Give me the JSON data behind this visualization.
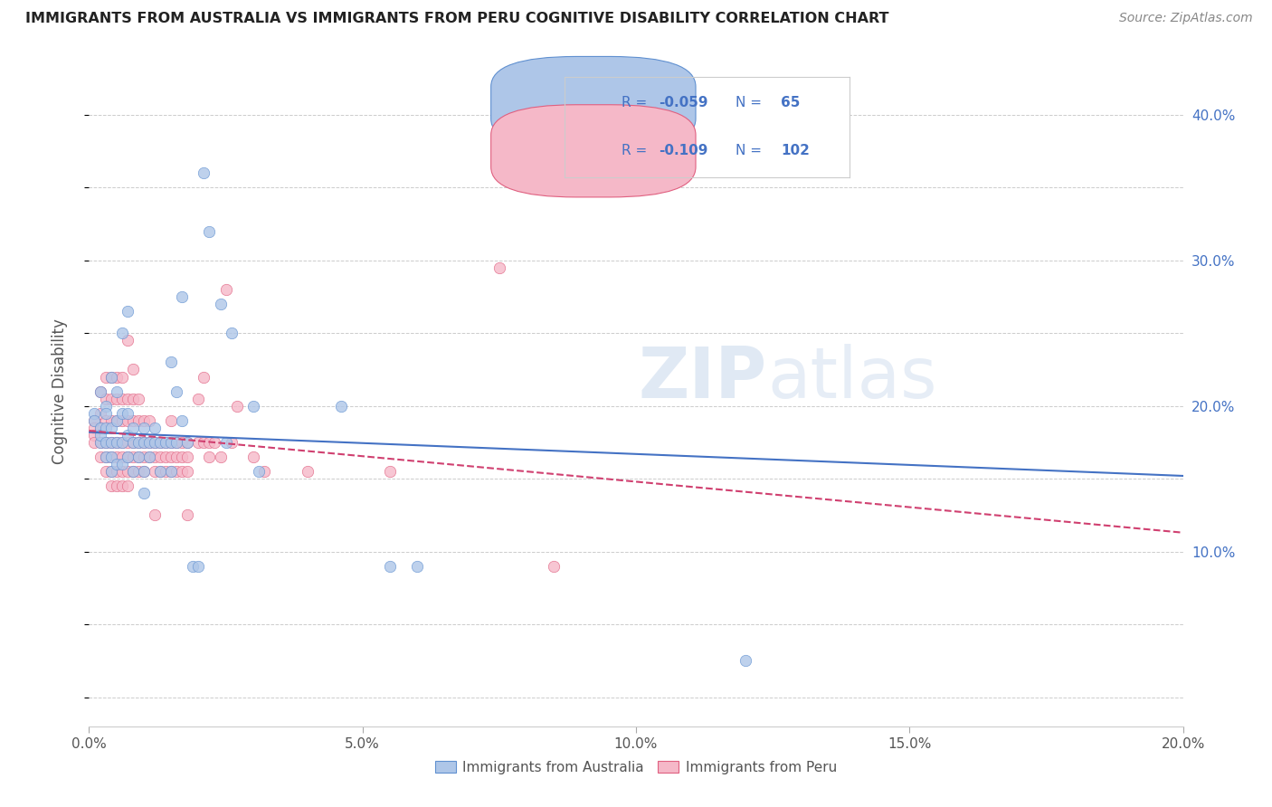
{
  "title": "IMMIGRANTS FROM AUSTRALIA VS IMMIGRANTS FROM PERU COGNITIVE DISABILITY CORRELATION CHART",
  "source": "Source: ZipAtlas.com",
  "xlabel_ticks": [
    "0.0%",
    "5.0%",
    "10.0%",
    "15.0%",
    "20.0%"
  ],
  "xlabel_vals": [
    0.0,
    0.05,
    0.1,
    0.15,
    0.2
  ],
  "xlim": [
    0.0,
    0.2
  ],
  "ylim": [
    -0.02,
    0.44
  ],
  "australia_R": -0.059,
  "australia_N": 65,
  "peru_R": -0.109,
  "peru_N": 102,
  "australia_color": "#aec6e8",
  "peru_color": "#f5b8c8",
  "australia_edge_color": "#6090d0",
  "peru_edge_color": "#e06080",
  "australia_line_color": "#4472c4",
  "peru_line_color": "#d04070",
  "legend_text_color": "#4472c4",
  "watermark": "ZIPatlas",
  "legend_australia_label": "Immigrants from Australia",
  "legend_peru_label": "Immigrants from Peru",
  "aus_line_intercept": 0.182,
  "aus_line_slope": -0.15,
  "peru_line_intercept": 0.183,
  "peru_line_slope": -0.35,
  "australia_scatter": [
    [
      0.001,
      0.195
    ],
    [
      0.001,
      0.19
    ],
    [
      0.002,
      0.21
    ],
    [
      0.002,
      0.185
    ],
    [
      0.002,
      0.175
    ],
    [
      0.002,
      0.18
    ],
    [
      0.003,
      0.2
    ],
    [
      0.003,
      0.185
    ],
    [
      0.003,
      0.175
    ],
    [
      0.003,
      0.165
    ],
    [
      0.003,
      0.195
    ],
    [
      0.004,
      0.22
    ],
    [
      0.004,
      0.185
    ],
    [
      0.004,
      0.175
    ],
    [
      0.004,
      0.165
    ],
    [
      0.004,
      0.155
    ],
    [
      0.005,
      0.21
    ],
    [
      0.005,
      0.19
    ],
    [
      0.005,
      0.175
    ],
    [
      0.005,
      0.16
    ],
    [
      0.006,
      0.25
    ],
    [
      0.006,
      0.195
    ],
    [
      0.006,
      0.175
    ],
    [
      0.006,
      0.16
    ],
    [
      0.007,
      0.265
    ],
    [
      0.007,
      0.195
    ],
    [
      0.007,
      0.18
    ],
    [
      0.007,
      0.165
    ],
    [
      0.008,
      0.185
    ],
    [
      0.008,
      0.175
    ],
    [
      0.008,
      0.155
    ],
    [
      0.009,
      0.175
    ],
    [
      0.009,
      0.165
    ],
    [
      0.01,
      0.185
    ],
    [
      0.01,
      0.175
    ],
    [
      0.01,
      0.155
    ],
    [
      0.01,
      0.14
    ],
    [
      0.011,
      0.175
    ],
    [
      0.011,
      0.165
    ],
    [
      0.012,
      0.185
    ],
    [
      0.012,
      0.175
    ],
    [
      0.013,
      0.175
    ],
    [
      0.013,
      0.155
    ],
    [
      0.014,
      0.175
    ],
    [
      0.015,
      0.23
    ],
    [
      0.015,
      0.175
    ],
    [
      0.015,
      0.155
    ],
    [
      0.016,
      0.21
    ],
    [
      0.016,
      0.175
    ],
    [
      0.017,
      0.275
    ],
    [
      0.017,
      0.19
    ],
    [
      0.018,
      0.175
    ],
    [
      0.019,
      0.09
    ],
    [
      0.02,
      0.09
    ],
    [
      0.021,
      0.36
    ],
    [
      0.022,
      0.32
    ],
    [
      0.024,
      0.27
    ],
    [
      0.025,
      0.175
    ],
    [
      0.026,
      0.25
    ],
    [
      0.03,
      0.2
    ],
    [
      0.031,
      0.155
    ],
    [
      0.046,
      0.2
    ],
    [
      0.055,
      0.09
    ],
    [
      0.06,
      0.09
    ],
    [
      0.12,
      0.025
    ]
  ],
  "peru_scatter": [
    [
      0.001,
      0.19
    ],
    [
      0.001,
      0.185
    ],
    [
      0.001,
      0.18
    ],
    [
      0.001,
      0.175
    ],
    [
      0.002,
      0.21
    ],
    [
      0.002,
      0.195
    ],
    [
      0.002,
      0.185
    ],
    [
      0.002,
      0.175
    ],
    [
      0.002,
      0.165
    ],
    [
      0.003,
      0.22
    ],
    [
      0.003,
      0.205
    ],
    [
      0.003,
      0.19
    ],
    [
      0.003,
      0.175
    ],
    [
      0.003,
      0.165
    ],
    [
      0.003,
      0.155
    ],
    [
      0.004,
      0.22
    ],
    [
      0.004,
      0.205
    ],
    [
      0.004,
      0.19
    ],
    [
      0.004,
      0.175
    ],
    [
      0.004,
      0.165
    ],
    [
      0.004,
      0.155
    ],
    [
      0.004,
      0.145
    ],
    [
      0.005,
      0.22
    ],
    [
      0.005,
      0.205
    ],
    [
      0.005,
      0.19
    ],
    [
      0.005,
      0.175
    ],
    [
      0.005,
      0.165
    ],
    [
      0.005,
      0.155
    ],
    [
      0.005,
      0.145
    ],
    [
      0.006,
      0.22
    ],
    [
      0.006,
      0.205
    ],
    [
      0.006,
      0.19
    ],
    [
      0.006,
      0.175
    ],
    [
      0.006,
      0.165
    ],
    [
      0.006,
      0.155
    ],
    [
      0.006,
      0.145
    ],
    [
      0.007,
      0.245
    ],
    [
      0.007,
      0.205
    ],
    [
      0.007,
      0.19
    ],
    [
      0.007,
      0.175
    ],
    [
      0.007,
      0.165
    ],
    [
      0.007,
      0.155
    ],
    [
      0.007,
      0.145
    ],
    [
      0.008,
      0.225
    ],
    [
      0.008,
      0.205
    ],
    [
      0.008,
      0.19
    ],
    [
      0.008,
      0.175
    ],
    [
      0.008,
      0.165
    ],
    [
      0.008,
      0.155
    ],
    [
      0.009,
      0.205
    ],
    [
      0.009,
      0.19
    ],
    [
      0.009,
      0.175
    ],
    [
      0.009,
      0.165
    ],
    [
      0.009,
      0.155
    ],
    [
      0.01,
      0.19
    ],
    [
      0.01,
      0.175
    ],
    [
      0.01,
      0.165
    ],
    [
      0.01,
      0.155
    ],
    [
      0.011,
      0.19
    ],
    [
      0.011,
      0.175
    ],
    [
      0.011,
      0.165
    ],
    [
      0.012,
      0.175
    ],
    [
      0.012,
      0.165
    ],
    [
      0.012,
      0.155
    ],
    [
      0.012,
      0.125
    ],
    [
      0.013,
      0.175
    ],
    [
      0.013,
      0.165
    ],
    [
      0.013,
      0.155
    ],
    [
      0.014,
      0.175
    ],
    [
      0.014,
      0.165
    ],
    [
      0.014,
      0.155
    ],
    [
      0.015,
      0.19
    ],
    [
      0.015,
      0.175
    ],
    [
      0.015,
      0.165
    ],
    [
      0.015,
      0.155
    ],
    [
      0.016,
      0.175
    ],
    [
      0.016,
      0.165
    ],
    [
      0.016,
      0.155
    ],
    [
      0.017,
      0.175
    ],
    [
      0.017,
      0.165
    ],
    [
      0.017,
      0.155
    ],
    [
      0.018,
      0.175
    ],
    [
      0.018,
      0.165
    ],
    [
      0.018,
      0.155
    ],
    [
      0.018,
      0.125
    ],
    [
      0.02,
      0.205
    ],
    [
      0.02,
      0.175
    ],
    [
      0.021,
      0.22
    ],
    [
      0.021,
      0.175
    ],
    [
      0.022,
      0.175
    ],
    [
      0.022,
      0.165
    ],
    [
      0.023,
      0.175
    ],
    [
      0.024,
      0.165
    ],
    [
      0.025,
      0.28
    ],
    [
      0.026,
      0.175
    ],
    [
      0.027,
      0.2
    ],
    [
      0.03,
      0.165
    ],
    [
      0.032,
      0.155
    ],
    [
      0.04,
      0.155
    ],
    [
      0.055,
      0.155
    ],
    [
      0.075,
      0.295
    ],
    [
      0.085,
      0.09
    ]
  ]
}
